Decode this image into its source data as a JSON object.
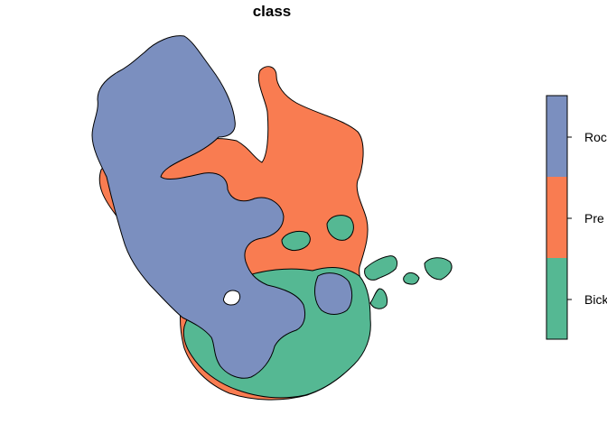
{
  "title": "class",
  "colors": {
    "rock": "#7b8fbf",
    "prey": "#f97c51",
    "bicker": "#55b893",
    "outline": "#000000",
    "hole": "#ffffff"
  },
  "legend": {
    "entries": [
      {
        "label": "Roc",
        "color": "#7b8fbf"
      },
      {
        "label": "Pre",
        "color": "#f97c51"
      },
      {
        "label": "Bick",
        "color": "#55b893"
      }
    ]
  }
}
